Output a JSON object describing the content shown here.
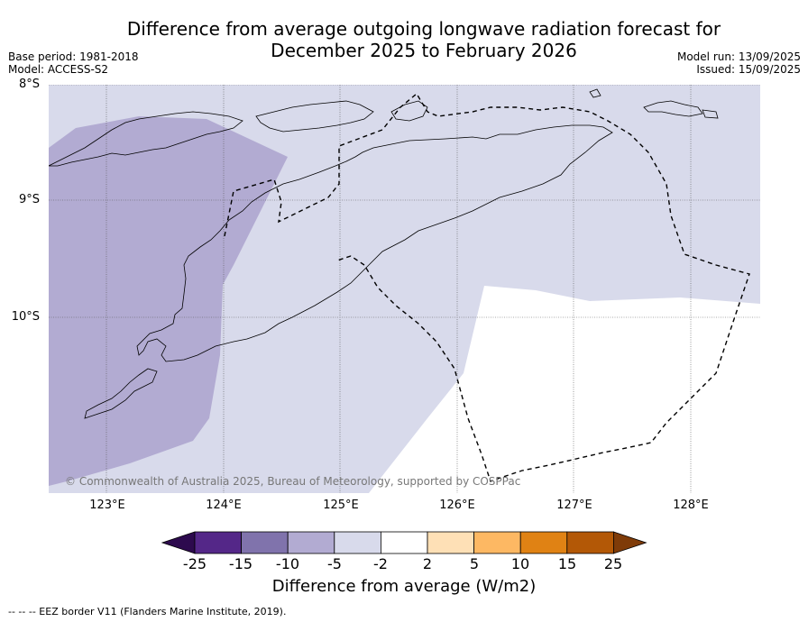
{
  "title_line1": "Difference from average outgoing longwave radiation forecast for",
  "title_line2": "December 2025 to February 2026",
  "meta_left": [
    "Base period: 1981-2018",
    "Model: ACCESS-S2"
  ],
  "meta_right": [
    "Model run: 13/09/2025",
    "Issued: 15/09/2025"
  ],
  "lat_labels": [
    "8°S",
    "9°S",
    "10°S"
  ],
  "lon_labels": [
    "123°E",
    "124°E",
    "125°E",
    "126°E",
    "127°E",
    "128°E"
  ],
  "copyright": "© Commonwealth of Australia 2025, Bureau of Meteorology, supported by COSPPac",
  "colorbar": {
    "ticks": [
      "-25",
      "-15",
      "-10",
      "-5",
      "-2",
      "2",
      "5",
      "10",
      "15",
      "25"
    ],
    "colors": [
      "#2d0a4e",
      "#542788",
      "#8073ac",
      "#b2abd2",
      "#d8daeb",
      "#ffffff",
      "#fee0b6",
      "#fdb863",
      "#e08214",
      "#b35806",
      "#7f3b08"
    ],
    "title": "Difference from average (W/m2)"
  },
  "footnote": "--  --  -- EEZ border V11 (Flanders Marine Institute, 2019)."
}
